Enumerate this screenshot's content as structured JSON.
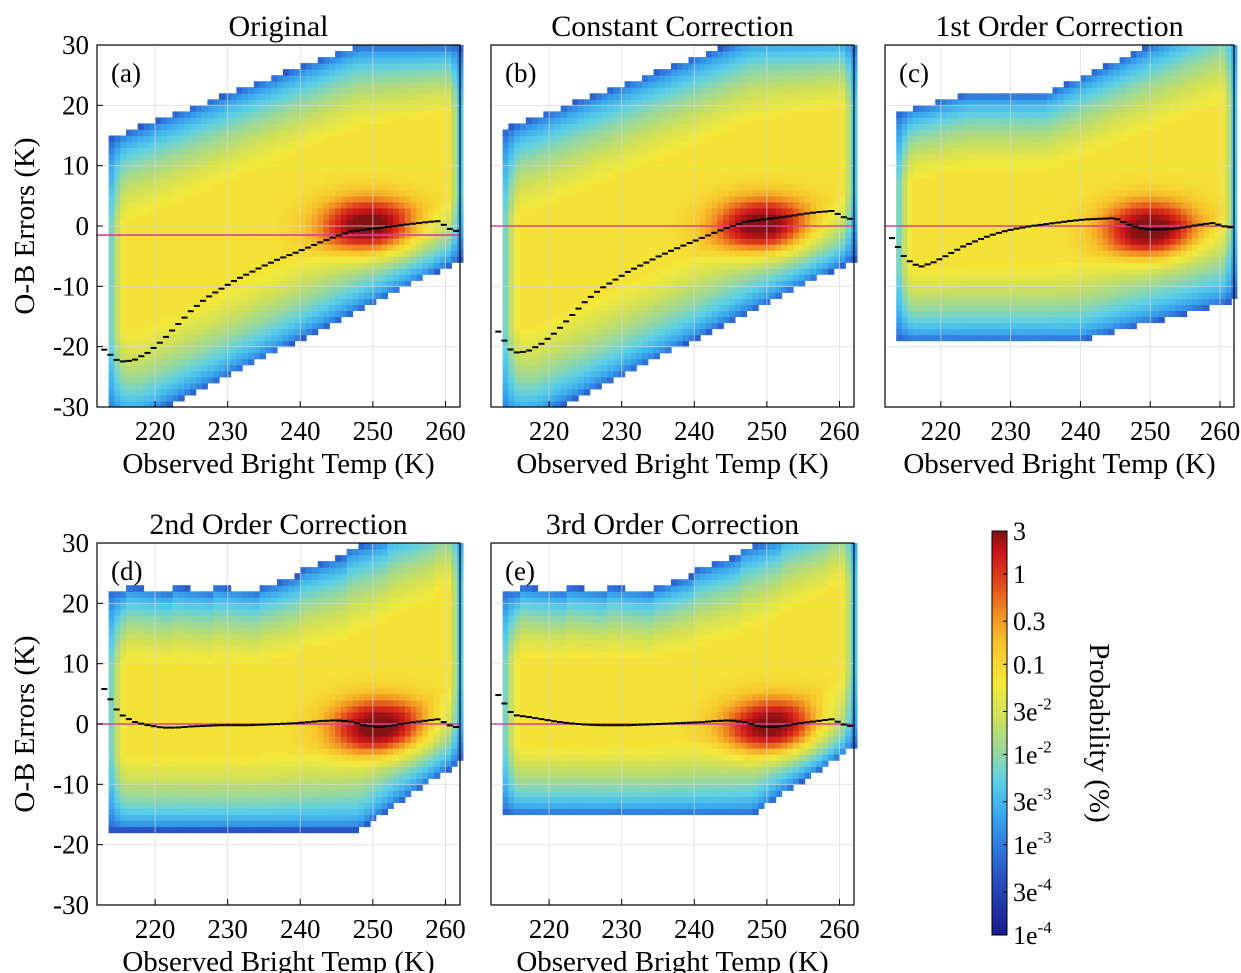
{
  "chart_data": [
    {
      "type": "heatmap",
      "panel_label": "(a)",
      "title": "Original",
      "xlabel": "Observed Bright Temp (K)",
      "ylabel": "O-B Errors (K)",
      "xlim": [
        212,
        262
      ],
      "ylim": [
        -30,
        30
      ],
      "xticks": [
        220,
        230,
        240,
        250,
        260
      ],
      "yticks": [
        30,
        20,
        10,
        0,
        -10,
        -20,
        -30
      ],
      "grid": true,
      "reference_line_y": -1.5,
      "mean_curve": {
        "x": [
          213,
          215,
          217,
          219,
          221,
          223,
          225,
          227,
          229,
          231,
          233,
          235,
          237,
          239,
          241,
          243,
          245,
          247,
          249,
          251,
          253,
          255,
          257,
          259,
          261
        ],
        "y": [
          -20.5,
          -22.5,
          -22.3,
          -21,
          -19,
          -16.5,
          -14,
          -12,
          -10.5,
          -9,
          -7.8,
          -6.6,
          -5.5,
          -4.6,
          -3.6,
          -2.6,
          -1.7,
          -0.9,
          -0.6,
          -0.3,
          0,
          0.3,
          0.6,
          0.8,
          -0.8
        ]
      }
    },
    {
      "type": "heatmap",
      "panel_label": "(b)",
      "title": "Constant Correction",
      "xlabel": "Observed Bright Temp (K)",
      "ylabel": "",
      "xlim": [
        212,
        262
      ],
      "ylim": [
        -30,
        30
      ],
      "xticks": [
        220,
        230,
        240,
        250,
        260
      ],
      "yticks": [],
      "grid": true,
      "reference_line_y": 0,
      "mean_curve": {
        "x": [
          213,
          215,
          217,
          219,
          221,
          223,
          225,
          227,
          229,
          231,
          233,
          235,
          237,
          239,
          241,
          243,
          245,
          247,
          249,
          251,
          253,
          255,
          257,
          259,
          261
        ],
        "y": [
          -17.5,
          -21,
          -20.8,
          -19.5,
          -17.5,
          -15,
          -12.5,
          -10.5,
          -9,
          -7.5,
          -6.3,
          -5.1,
          -4,
          -3,
          -2,
          -1,
          -0.1,
          0.7,
          1,
          1.3,
          1.6,
          2,
          2.3,
          2.5,
          1.2
        ]
      }
    },
    {
      "type": "heatmap",
      "panel_label": "(c)",
      "title": "1st Order Correction",
      "xlabel": "Observed Bright Temp (K)",
      "ylabel": "",
      "xlim": [
        212,
        262
      ],
      "ylim": [
        -30,
        30
      ],
      "xticks": [
        220,
        230,
        240,
        250,
        260
      ],
      "yticks": [],
      "grid": true,
      "reference_line_y": 0,
      "mean_curve": {
        "x": [
          213,
          215,
          217,
          219,
          221,
          223,
          225,
          227,
          229,
          231,
          233,
          235,
          237,
          239,
          241,
          243,
          245,
          247,
          249,
          251,
          253,
          255,
          257,
          259,
          261
        ],
        "y": [
          -2,
          -5.5,
          -6.8,
          -6,
          -4.8,
          -3.5,
          -2.5,
          -1.6,
          -0.9,
          -0.4,
          0,
          0.3,
          0.6,
          0.9,
          1.1,
          1.2,
          1.3,
          0.2,
          -0.5,
          -0.6,
          -0.5,
          -0.2,
          0.2,
          0.5,
          -0.2
        ]
      }
    },
    {
      "type": "heatmap",
      "panel_label": "(d)",
      "title": "2nd Order Correction",
      "xlabel": "Observed Bright Temp (K)",
      "ylabel": "O-B Errors (K)",
      "xlim": [
        212,
        262
      ],
      "ylim": [
        -30,
        30
      ],
      "xticks": [
        220,
        230,
        240,
        250,
        260
      ],
      "yticks": [
        30,
        20,
        10,
        0,
        -10,
        -20,
        -30
      ],
      "grid": true,
      "reference_line_y": 0,
      "mean_curve": {
        "x": [
          213,
          215,
          217,
          219,
          221,
          223,
          225,
          227,
          229,
          231,
          233,
          235,
          237,
          239,
          241,
          243,
          245,
          247,
          249,
          251,
          253,
          255,
          257,
          259,
          261
        ],
        "y": [
          5.8,
          1.8,
          0.4,
          -0.2,
          -0.6,
          -0.6,
          -0.4,
          -0.3,
          -0.2,
          -0.2,
          -0.2,
          -0.1,
          0,
          0.1,
          0.3,
          0.5,
          0.6,
          0.4,
          -0.3,
          -0.5,
          -0.2,
          0.2,
          0.5,
          0.8,
          -0.5
        ]
      }
    },
    {
      "type": "heatmap",
      "panel_label": "(e)",
      "title": "3rd Order Correction",
      "xlabel": "Observed Bright Temp (K)",
      "ylabel": "",
      "xlim": [
        212,
        262
      ],
      "ylim": [
        -30,
        30
      ],
      "xticks": [
        220,
        230,
        240,
        250,
        260
      ],
      "yticks": [],
      "grid": true,
      "reference_line_y": 0,
      "mean_curve": {
        "x": [
          213,
          215,
          217,
          219,
          221,
          223,
          225,
          227,
          229,
          231,
          233,
          235,
          237,
          239,
          241,
          243,
          245,
          247,
          249,
          251,
          253,
          255,
          257,
          259,
          261
        ],
        "y": [
          4.8,
          1.5,
          1.2,
          0.8,
          0.4,
          0.1,
          -0.1,
          -0.2,
          -0.2,
          -0.2,
          -0.1,
          0,
          0.1,
          0.2,
          0.3,
          0.5,
          0.6,
          0.3,
          -0.4,
          -0.5,
          -0.2,
          0.2,
          0.5,
          0.8,
          -0.3
        ]
      }
    }
  ],
  "colorbar": {
    "label": "Probability (%)",
    "ticks": [
      {
        "value": 3,
        "text": "3"
      },
      {
        "value": 1,
        "text": "1"
      },
      {
        "value": 0.3,
        "text": "0.3"
      },
      {
        "value": 0.1,
        "text": "0.1"
      },
      {
        "value": 0.03,
        "base": "3e",
        "exp": "-2"
      },
      {
        "value": 0.01,
        "base": "1e",
        "exp": "-2"
      },
      {
        "value": 0.003,
        "base": "3e",
        "exp": "-3"
      },
      {
        "value": 0.001,
        "base": "1e",
        "exp": "-3"
      },
      {
        "value": 0.0003,
        "base": "3e",
        "exp": "-4"
      },
      {
        "value": 0.0001,
        "base": "1e",
        "exp": "-4"
      }
    ],
    "scale": "log",
    "range": [
      0.0001,
      3
    ]
  },
  "colors": {
    "reference_line": "#d9409a",
    "mean_curve": "#000000",
    "grid": "#d8d8d8",
    "colormap": [
      "#1e1a8c",
      "#2440b0",
      "#2f70d8",
      "#3aa9ee",
      "#5dd0e6",
      "#9bd89a",
      "#cfe05a",
      "#f4e93a",
      "#f7c52c",
      "#f08a22",
      "#e0401c",
      "#c8141a",
      "#7a1212"
    ]
  }
}
